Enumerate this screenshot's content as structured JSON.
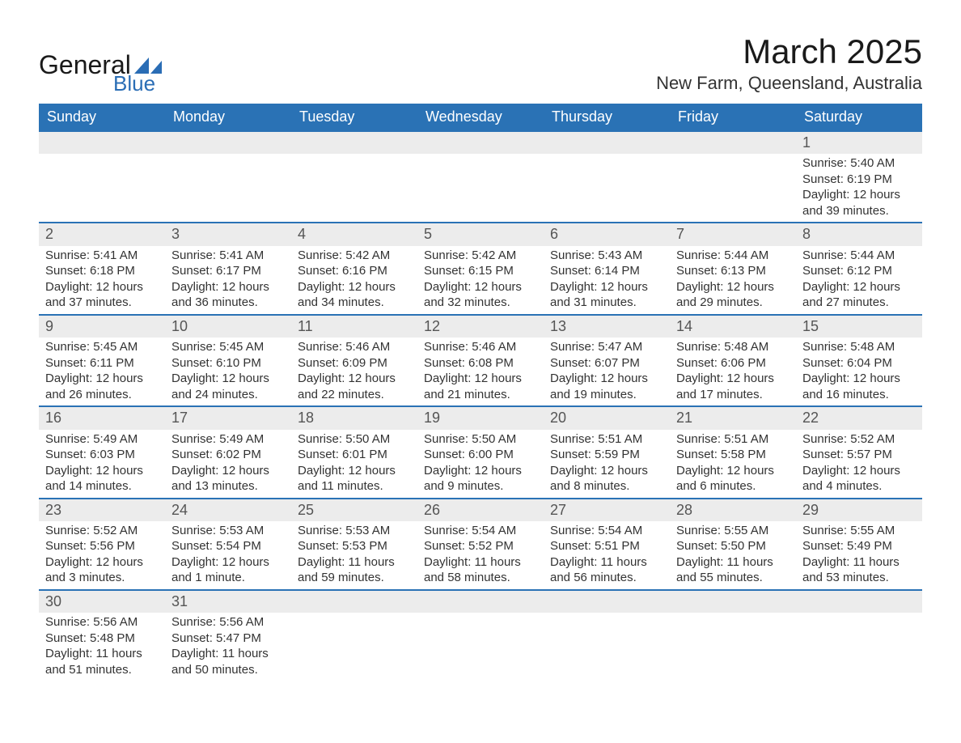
{
  "logo": {
    "word1": "General",
    "word2": "Blue",
    "shape_color": "#2a6db5"
  },
  "title": "March 2025",
  "location": "New Farm, Queensland, Australia",
  "colors": {
    "header_bg": "#2a72b5",
    "header_text": "#ffffff",
    "daynum_bg": "#ececec",
    "row_border": "#2a72b5",
    "text": "#333333",
    "title_text": "#1a1a1a"
  },
  "weekdays": [
    "Sunday",
    "Monday",
    "Tuesday",
    "Wednesday",
    "Thursday",
    "Friday",
    "Saturday"
  ],
  "weeks": [
    [
      null,
      null,
      null,
      null,
      null,
      null,
      {
        "n": "1",
        "sunrise": "5:40 AM",
        "sunset": "6:19 PM",
        "daylight": "12 hours and 39 minutes."
      }
    ],
    [
      {
        "n": "2",
        "sunrise": "5:41 AM",
        "sunset": "6:18 PM",
        "daylight": "12 hours and 37 minutes."
      },
      {
        "n": "3",
        "sunrise": "5:41 AM",
        "sunset": "6:17 PM",
        "daylight": "12 hours and 36 minutes."
      },
      {
        "n": "4",
        "sunrise": "5:42 AM",
        "sunset": "6:16 PM",
        "daylight": "12 hours and 34 minutes."
      },
      {
        "n": "5",
        "sunrise": "5:42 AM",
        "sunset": "6:15 PM",
        "daylight": "12 hours and 32 minutes."
      },
      {
        "n": "6",
        "sunrise": "5:43 AM",
        "sunset": "6:14 PM",
        "daylight": "12 hours and 31 minutes."
      },
      {
        "n": "7",
        "sunrise": "5:44 AM",
        "sunset": "6:13 PM",
        "daylight": "12 hours and 29 minutes."
      },
      {
        "n": "8",
        "sunrise": "5:44 AM",
        "sunset": "6:12 PM",
        "daylight": "12 hours and 27 minutes."
      }
    ],
    [
      {
        "n": "9",
        "sunrise": "5:45 AM",
        "sunset": "6:11 PM",
        "daylight": "12 hours and 26 minutes."
      },
      {
        "n": "10",
        "sunrise": "5:45 AM",
        "sunset": "6:10 PM",
        "daylight": "12 hours and 24 minutes."
      },
      {
        "n": "11",
        "sunrise": "5:46 AM",
        "sunset": "6:09 PM",
        "daylight": "12 hours and 22 minutes."
      },
      {
        "n": "12",
        "sunrise": "5:46 AM",
        "sunset": "6:08 PM",
        "daylight": "12 hours and 21 minutes."
      },
      {
        "n": "13",
        "sunrise": "5:47 AM",
        "sunset": "6:07 PM",
        "daylight": "12 hours and 19 minutes."
      },
      {
        "n": "14",
        "sunrise": "5:48 AM",
        "sunset": "6:06 PM",
        "daylight": "12 hours and 17 minutes."
      },
      {
        "n": "15",
        "sunrise": "5:48 AM",
        "sunset": "6:04 PM",
        "daylight": "12 hours and 16 minutes."
      }
    ],
    [
      {
        "n": "16",
        "sunrise": "5:49 AM",
        "sunset": "6:03 PM",
        "daylight": "12 hours and 14 minutes."
      },
      {
        "n": "17",
        "sunrise": "5:49 AM",
        "sunset": "6:02 PM",
        "daylight": "12 hours and 13 minutes."
      },
      {
        "n": "18",
        "sunrise": "5:50 AM",
        "sunset": "6:01 PM",
        "daylight": "12 hours and 11 minutes."
      },
      {
        "n": "19",
        "sunrise": "5:50 AM",
        "sunset": "6:00 PM",
        "daylight": "12 hours and 9 minutes."
      },
      {
        "n": "20",
        "sunrise": "5:51 AM",
        "sunset": "5:59 PM",
        "daylight": "12 hours and 8 minutes."
      },
      {
        "n": "21",
        "sunrise": "5:51 AM",
        "sunset": "5:58 PM",
        "daylight": "12 hours and 6 minutes."
      },
      {
        "n": "22",
        "sunrise": "5:52 AM",
        "sunset": "5:57 PM",
        "daylight": "12 hours and 4 minutes."
      }
    ],
    [
      {
        "n": "23",
        "sunrise": "5:52 AM",
        "sunset": "5:56 PM",
        "daylight": "12 hours and 3 minutes."
      },
      {
        "n": "24",
        "sunrise": "5:53 AM",
        "sunset": "5:54 PM",
        "daylight": "12 hours and 1 minute."
      },
      {
        "n": "25",
        "sunrise": "5:53 AM",
        "sunset": "5:53 PM",
        "daylight": "11 hours and 59 minutes."
      },
      {
        "n": "26",
        "sunrise": "5:54 AM",
        "sunset": "5:52 PM",
        "daylight": "11 hours and 58 minutes."
      },
      {
        "n": "27",
        "sunrise": "5:54 AM",
        "sunset": "5:51 PM",
        "daylight": "11 hours and 56 minutes."
      },
      {
        "n": "28",
        "sunrise": "5:55 AM",
        "sunset": "5:50 PM",
        "daylight": "11 hours and 55 minutes."
      },
      {
        "n": "29",
        "sunrise": "5:55 AM",
        "sunset": "5:49 PM",
        "daylight": "11 hours and 53 minutes."
      }
    ],
    [
      {
        "n": "30",
        "sunrise": "5:56 AM",
        "sunset": "5:48 PM",
        "daylight": "11 hours and 51 minutes."
      },
      {
        "n": "31",
        "sunrise": "5:56 AM",
        "sunset": "5:47 PM",
        "daylight": "11 hours and 50 minutes."
      },
      null,
      null,
      null,
      null,
      null
    ]
  ],
  "labels": {
    "sunrise": "Sunrise: ",
    "sunset": "Sunset: ",
    "daylight": "Daylight: "
  }
}
